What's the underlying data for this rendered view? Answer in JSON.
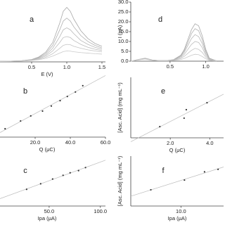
{
  "chart_data": [
    {
      "type": "line",
      "label": "a",
      "xlabel": "E (V)",
      "xlim": [
        0.05,
        1.55
      ],
      "ylim": [
        0,
        30
      ],
      "xticks": [
        0.5,
        {
          "value": 1.0,
          "label": "1.0"
        },
        1.5
      ],
      "x": [
        0.05,
        0.2,
        0.35,
        0.5,
        0.6,
        0.7,
        0.8,
        0.9,
        0.95,
        1.0,
        1.05,
        1.1,
        1.2,
        1.3,
        1.4,
        1.5
      ],
      "series": [
        {
          "color": "#a8a8a8",
          "values": [
            0.3,
            0.4,
            0.6,
            1.2,
            2.5,
            5,
            10,
            20,
            26,
            28,
            26,
            22,
            16,
            12,
            9.5,
            8
          ]
        },
        {
          "color": "#b0b0b0",
          "values": [
            0.3,
            0.4,
            0.6,
            1.1,
            2.2,
            4.3,
            8.5,
            16.5,
            21,
            22.5,
            21,
            18,
            13.5,
            10.5,
            8.5,
            7.2
          ]
        },
        {
          "color": "#b8b8b8",
          "values": [
            0.3,
            0.4,
            0.5,
            1,
            1.9,
            3.6,
            7,
            13,
            16.5,
            17.5,
            16.5,
            14.5,
            11,
            9,
            7.5,
            6.5
          ]
        },
        {
          "color": "#bdbdbd",
          "values": [
            0.3,
            0.3,
            0.5,
            0.9,
            1.6,
            3,
            5.6,
            10,
            12.5,
            13,
            12.5,
            11,
            9,
            7.5,
            6.5,
            5.8
          ]
        },
        {
          "color": "#c4c4c4",
          "values": [
            0.2,
            0.3,
            0.4,
            0.8,
            1.3,
            2.4,
            4.2,
            7,
            8.5,
            9,
            8.8,
            8,
            7,
            6.2,
            5.6,
            5.1
          ]
        },
        {
          "color": "#cacaca",
          "values": [
            0.2,
            0.3,
            0.4,
            0.7,
            1.1,
            1.8,
            3,
            4.5,
            5.3,
            5.6,
            5.5,
            5.2,
            4.8,
            4.5,
            4.2,
            4
          ]
        }
      ]
    },
    {
      "type": "line",
      "label": "d",
      "ylabel": "I (μA)",
      "xlim": [
        -0.05,
        1.25
      ],
      "ylim": [
        0,
        30
      ],
      "xticks": [
        0.5,
        {
          "value": 1.0,
          "label": "1.0"
        }
      ],
      "yticks": [
        {
          "value": 0,
          "label": "0.0"
        },
        {
          "value": 5,
          "label": "5.0"
        },
        {
          "value": 10,
          "label": "10.0"
        },
        {
          "value": 15,
          "label": "15.0"
        },
        {
          "value": 20,
          "label": "20.0"
        },
        {
          "value": 25,
          "label": "25.0"
        },
        {
          "value": 30,
          "label": "30.0"
        }
      ],
      "x": [
        -0.05,
        0.05,
        0.15,
        0.25,
        0.35,
        0.45,
        0.55,
        0.65,
        0.7,
        0.75,
        0.8,
        0.85,
        0.9,
        0.95,
        1.0,
        1.05,
        1.15
      ],
      "series": [
        {
          "color": "#a8a8a8",
          "values": [
            0,
            0.8,
            1.5,
            0.6,
            0.3,
            0.3,
            0.8,
            3,
            6,
            11,
            16,
            19,
            18,
            13,
            6,
            1.5,
            0.2
          ]
        },
        {
          "color": "#b0b0b0",
          "values": [
            0,
            0.8,
            1.5,
            0.6,
            0.3,
            0.3,
            0.7,
            2.7,
            5.3,
            9.6,
            14,
            16.5,
            15.5,
            11,
            5,
            1.3,
            0.2
          ]
        },
        {
          "color": "#b8b8b8",
          "values": [
            0,
            0.7,
            1.4,
            0.5,
            0.3,
            0.3,
            0.6,
            2.3,
            4.5,
            8,
            11.5,
            13.5,
            12.5,
            9,
            4,
            1,
            0.2
          ]
        },
        {
          "color": "#bdbdbd",
          "values": [
            0,
            0.7,
            1.3,
            0.5,
            0.3,
            0.3,
            0.5,
            1.8,
            3.5,
            6,
            8.5,
            10,
            9.5,
            7,
            3,
            0.8,
            0.1
          ]
        },
        {
          "color": "#c4c4c4",
          "values": [
            0,
            0.6,
            1.2,
            0.5,
            0.2,
            0.2,
            0.4,
            1.3,
            2.5,
            4,
            5.5,
            6.5,
            6,
            4.5,
            2,
            0.6,
            0.1
          ]
        },
        {
          "color": "#cacaca",
          "values": [
            0,
            0.6,
            1.1,
            0.4,
            0.2,
            0.2,
            0.3,
            0.8,
            1.4,
            2.2,
            3,
            3.5,
            3.3,
            2.4,
            1.2,
            0.4,
            0.1
          ]
        }
      ]
    },
    {
      "type": "scatter",
      "label": "b",
      "xlabel": "Q (μC)",
      "trendline": true,
      "color": "#333333",
      "xlim": [
        0,
        60
      ],
      "ylim": [
        0,
        2
      ],
      "xticks": [
        {
          "value": 20,
          "label": "20.0"
        },
        {
          "value": 40,
          "label": "40.0"
        },
        {
          "value": 60,
          "label": "60.0"
        }
      ],
      "x": [
        2.9,
        11.7,
        17.5,
        24.2,
        29.2,
        34.2,
        38.3,
        42.9,
        47.1
      ],
      "values": [
        0.28,
        0.54,
        0.71,
        0.87,
        1.04,
        1.22,
        1.36,
        1.51,
        1.72
      ]
    },
    {
      "type": "scatter",
      "label": "e",
      "xlabel": "Q (μC)",
      "ylabel": "[Asc. Acid] (mg mL⁻¹)",
      "trendline": true,
      "color": "#333333",
      "xlim": [
        0,
        4.7
      ],
      "ylim": [
        0,
        2
      ],
      "xticks": [
        {
          "value": 2,
          "label": "2.0"
        },
        {
          "value": 4,
          "label": "4.0"
        }
      ],
      "x": [
        1.47,
        2.7,
        2.81,
        3.86
      ],
      "values": [
        0.37,
        0.65,
        0.93,
        1.16
      ]
    },
    {
      "type": "scatter",
      "label": "c",
      "xlabel": "Ipa (μA)",
      "trendline": true,
      "color": "#333333",
      "xlim": [
        2,
        105
      ],
      "ylim": [
        0,
        2
      ],
      "xticks": [
        {
          "value": 50,
          "label": "50.0"
        },
        {
          "value": 100,
          "label": "100.0"
        }
      ],
      "x": [
        28,
        41.7,
        53.4,
        63.6,
        70.5,
        78.7,
        85.5
      ],
      "values": [
        0.67,
        0.89,
        1.08,
        1.23,
        1.33,
        1.42,
        1.54
      ]
    },
    {
      "type": "scatter",
      "label": "f",
      "xlabel": "Ipa (μA)",
      "ylabel": "[Asc. Acid] (mg mL⁻¹)",
      "trendline": true,
      "color": "#333333",
      "xlim": [
        0,
        18.5
      ],
      "ylim": [
        0,
        2
      ],
      "xticks": [
        {
          "value": 10,
          "label": "10.0"
        }
      ],
      "x": [
        4.0,
        10.7,
        14.7,
        17.4
      ],
      "values": [
        0.65,
        1.04,
        1.37,
        1.47
      ]
    }
  ]
}
